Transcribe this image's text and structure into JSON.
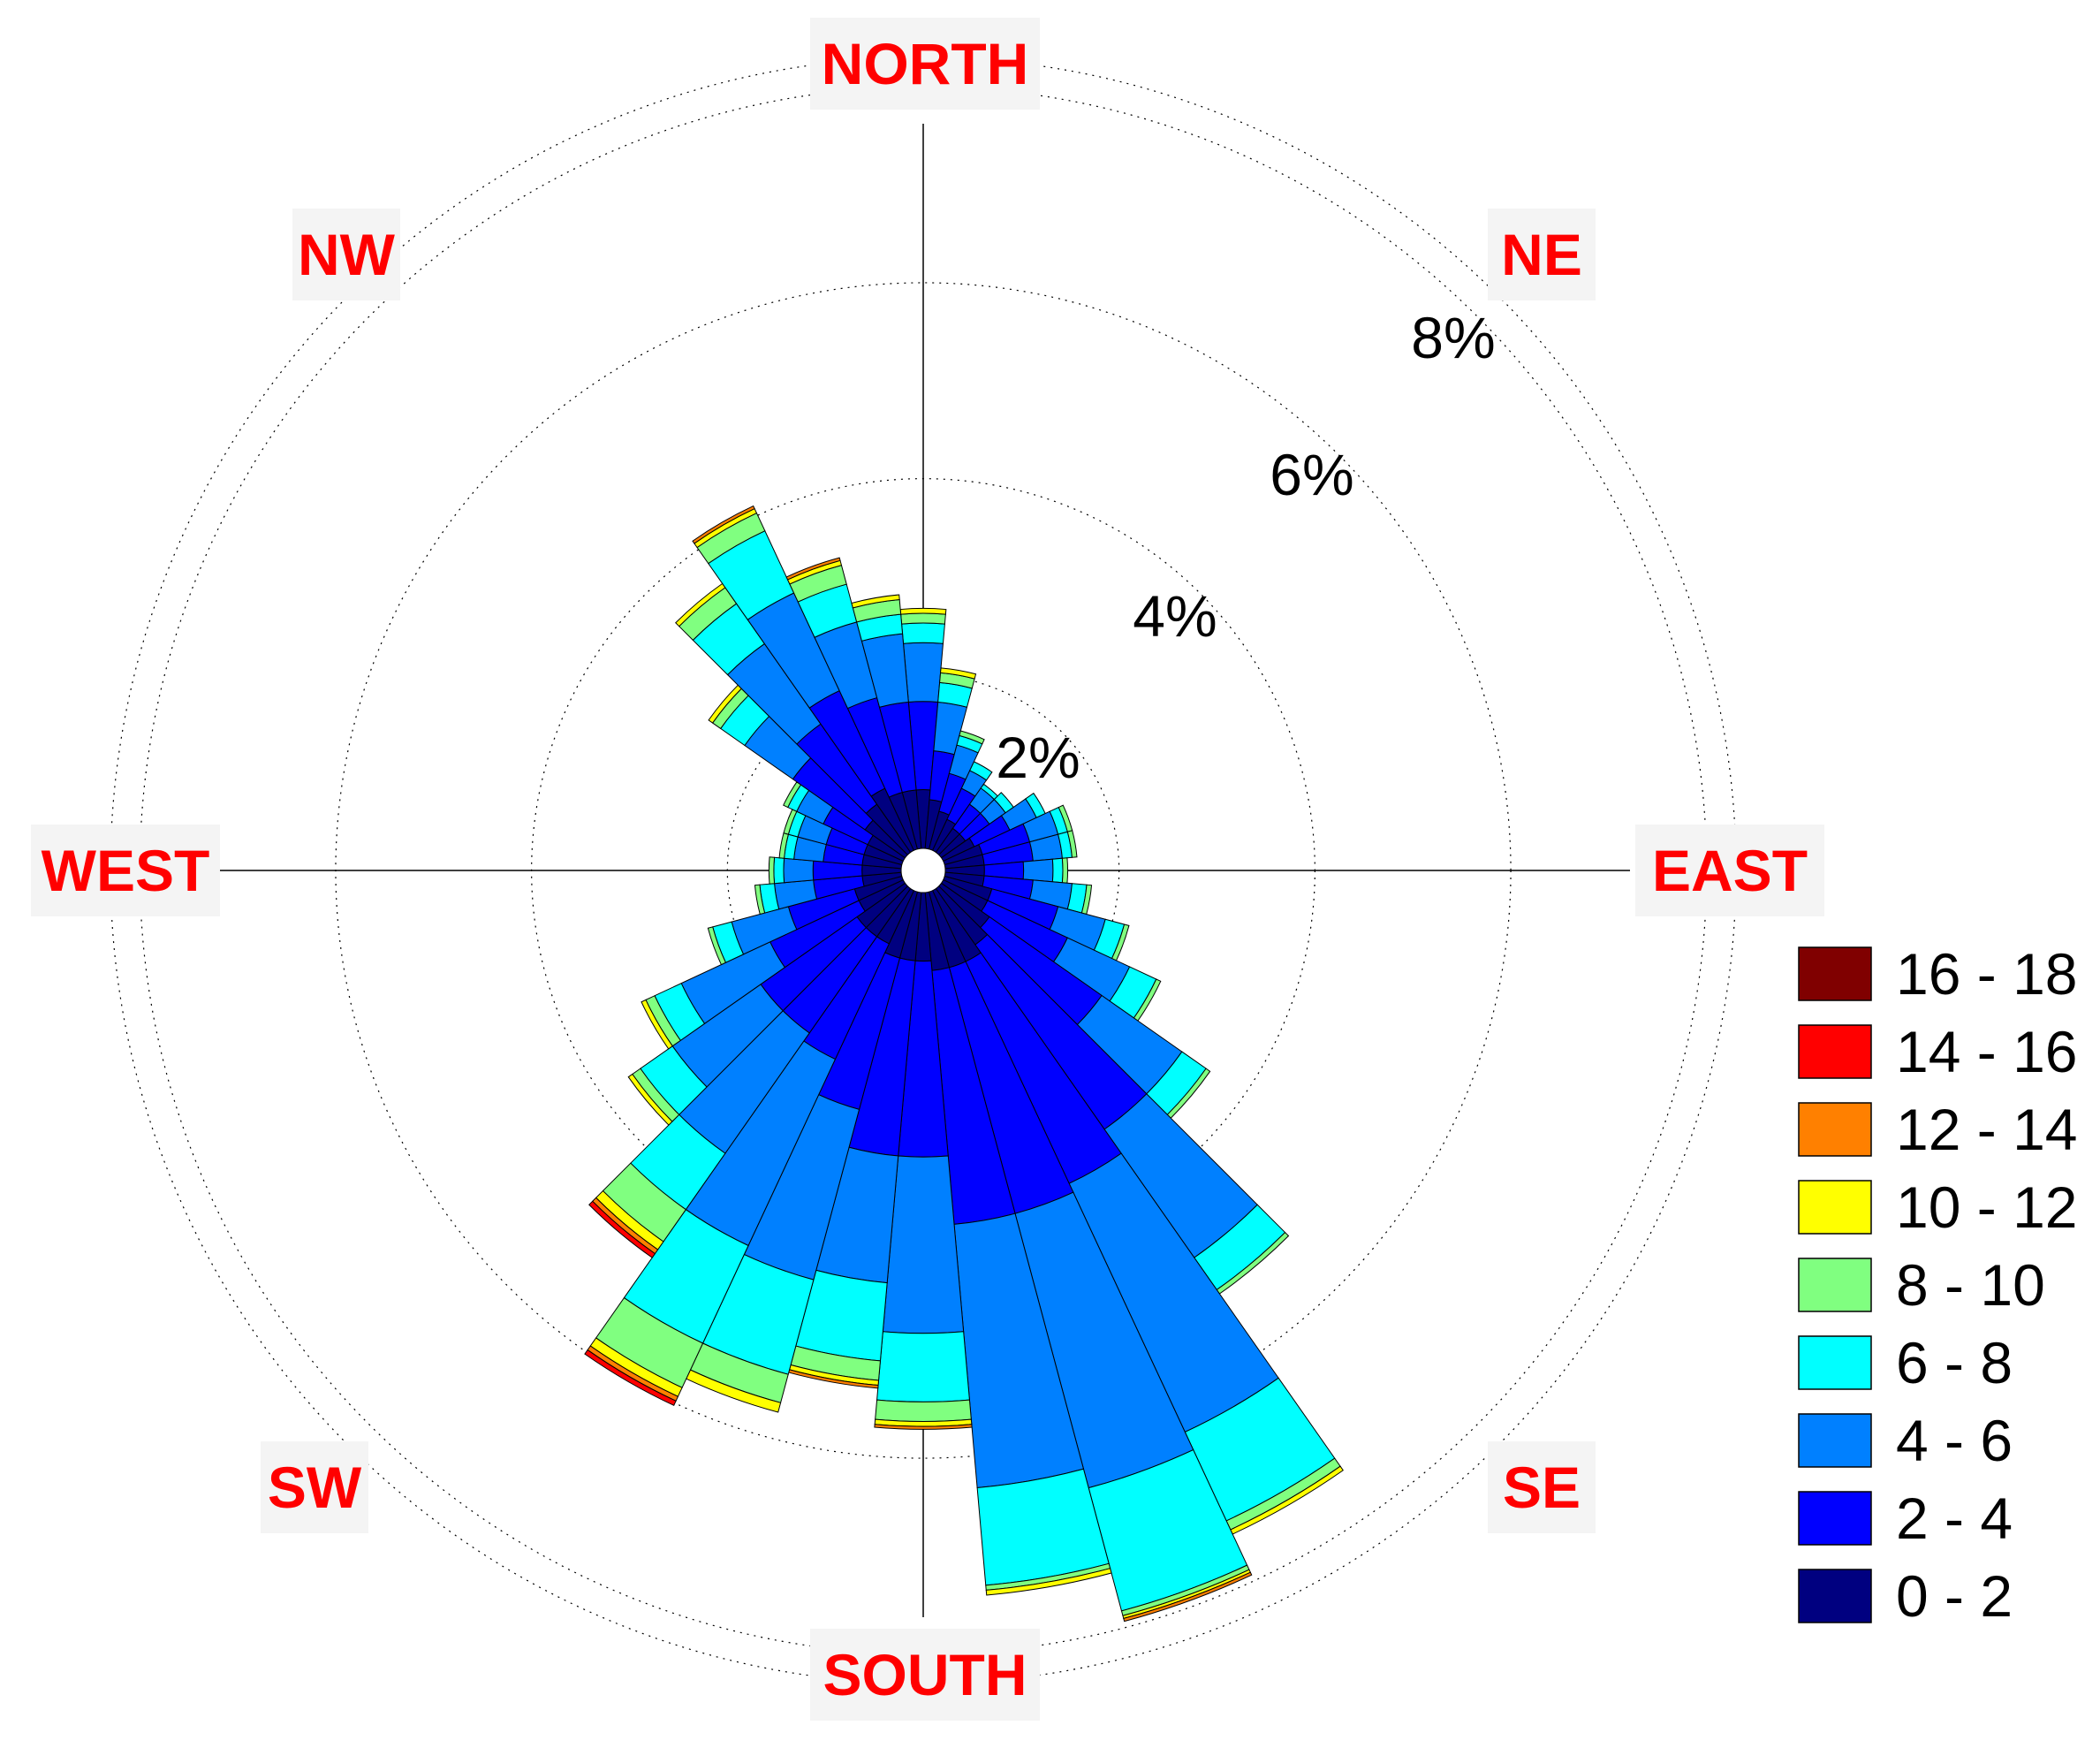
{
  "chart_data": {
    "type": "wind-rose",
    "directions": [
      "NORTH",
      "NE",
      "EAST",
      "SE",
      "SOUTH",
      "SW",
      "WEST",
      "NW"
    ],
    "rings": [
      {
        "value": 2,
        "label": "2%"
      },
      {
        "value": 4,
        "label": "4%"
      },
      {
        "value": 6,
        "label": "6%"
      },
      {
        "value": 8,
        "label": "8%"
      }
    ],
    "ring_max_percent": 8.3,
    "legend_placement": "right",
    "bins": [
      {
        "label": "0 - 2",
        "color": "#000080"
      },
      {
        "label": "2 - 4",
        "color": "#0000ff"
      },
      {
        "label": "4 - 6",
        "color": "#0080ff"
      },
      {
        "label": "6 - 8",
        "color": "#00ffff"
      },
      {
        "label": "8 - 10",
        "color": "#80ff80"
      },
      {
        "label": "10 - 12",
        "color": "#ffff00"
      },
      {
        "label": "12 - 14",
        "color": "#ff8000"
      },
      {
        "label": "14 - 16",
        "color": "#ff0000"
      },
      {
        "label": "16 - 18",
        "color": "#800000"
      }
    ],
    "sector_width_deg": 10,
    "sectors": [
      {
        "dir": 0,
        "values": [
          0.6,
          0.9,
          0.6,
          0.2,
          0.1,
          0.05,
          0,
          0,
          0
        ]
      },
      {
        "dir": 10,
        "values": [
          0.5,
          0.5,
          0.5,
          0.2,
          0.1,
          0.05,
          0,
          0,
          0
        ]
      },
      {
        "dir": 20,
        "values": [
          0.4,
          0.4,
          0.3,
          0.1,
          0.05,
          0,
          0,
          0,
          0
        ]
      },
      {
        "dir": 30,
        "values": [
          0.35,
          0.35,
          0.2,
          0.1,
          0,
          0,
          0,
          0,
          0
        ]
      },
      {
        "dir": 40,
        "values": [
          0.3,
          0.3,
          0.2,
          0.05,
          0,
          0,
          0,
          0,
          0
        ]
      },
      {
        "dir": 50,
        "values": [
          0.3,
          0.3,
          0.2,
          0.1,
          0,
          0,
          0,
          0,
          0
        ]
      },
      {
        "dir": 60,
        "values": [
          0.35,
          0.4,
          0.3,
          0.1,
          0,
          0,
          0,
          0,
          0
        ]
      },
      {
        "dir": 70,
        "values": [
          0.4,
          0.5,
          0.3,
          0.1,
          0.05,
          0,
          0,
          0,
          0
        ]
      },
      {
        "dir": 80,
        "values": [
          0.4,
          0.5,
          0.3,
          0.1,
          0.05,
          0,
          0,
          0,
          0
        ]
      },
      {
        "dir": 90,
        "values": [
          0.4,
          0.4,
          0.3,
          0.1,
          0.05,
          0,
          0,
          0,
          0
        ]
      },
      {
        "dir": 100,
        "values": [
          0.4,
          0.5,
          0.4,
          0.15,
          0.05,
          0,
          0,
          0,
          0
        ]
      },
      {
        "dir": 110,
        "values": [
          0.5,
          0.7,
          0.5,
          0.2,
          0.05,
          0,
          0,
          0,
          0
        ]
      },
      {
        "dir": 120,
        "values": [
          0.5,
          0.9,
          0.7,
          0.3,
          0.05,
          0,
          0,
          0,
          0
        ]
      },
      {
        "dir": 130,
        "values": [
          0.6,
          1.4,
          1.0,
          0.3,
          0.05,
          0,
          0,
          0,
          0
        ]
      },
      {
        "dir": 140,
        "values": [
          0.7,
          2.3,
          1.6,
          0.4,
          0.05,
          0,
          0,
          0,
          0
        ]
      },
      {
        "dir": 150,
        "values": [
          0.8,
          2.5,
          2.8,
          1.0,
          0.1,
          0.05,
          0,
          0,
          0
        ]
      },
      {
        "dir": 160,
        "values": [
          0.8,
          2.6,
          2.9,
          1.3,
          0.05,
          0.03,
          0.03,
          0,
          0
        ]
      },
      {
        "dir": 170,
        "values": [
          0.8,
          2.6,
          2.7,
          1.0,
          0.05,
          0.05,
          0,
          0,
          0
        ]
      },
      {
        "dir": 180,
        "values": [
          0.7,
          2.0,
          1.8,
          0.7,
          0.2,
          0.05,
          0.03,
          0,
          0
        ]
      },
      {
        "dir": 190,
        "values": [
          0.7,
          2.0,
          1.3,
          0.8,
          0.2,
          0.05,
          0.03,
          0,
          0
        ]
      },
      {
        "dir": 200,
        "values": [
          0.7,
          1.6,
          1.8,
          1.0,
          0.3,
          0.1,
          0,
          0,
          0
        ]
      },
      {
        "dir": 210,
        "values": [
          0.6,
          1.3,
          2.1,
          1.1,
          0.5,
          0.1,
          0.05,
          0.05,
          0
        ]
      },
      {
        "dir": 220,
        "values": [
          0.6,
          1.2,
          1.5,
          0.7,
          0.4,
          0.1,
          0.05,
          0.05,
          0
        ]
      },
      {
        "dir": 230,
        "values": [
          0.6,
          1.2,
          1.1,
          0.4,
          0.1,
          0.05,
          0,
          0,
          0
        ]
      },
      {
        "dir": 240,
        "values": [
          0.5,
          1.0,
          1.0,
          0.3,
          0.1,
          0.05,
          0,
          0,
          0
        ]
      },
      {
        "dir": 250,
        "values": [
          0.5,
          0.7,
          0.6,
          0.2,
          0.05,
          0,
          0,
          0,
          0
        ]
      },
      {
        "dir": 260,
        "values": [
          0.4,
          0.5,
          0.4,
          0.15,
          0.05,
          0,
          0,
          0,
          0
        ]
      },
      {
        "dir": 270,
        "values": [
          0.4,
          0.5,
          0.3,
          0.1,
          0.05,
          0,
          0,
          0,
          0
        ]
      },
      {
        "dir": 280,
        "values": [
          0.4,
          0.4,
          0.3,
          0.1,
          0.05,
          0,
          0,
          0,
          0
        ]
      },
      {
        "dir": 290,
        "values": [
          0.4,
          0.4,
          0.3,
          0.1,
          0.05,
          0,
          0,
          0,
          0
        ]
      },
      {
        "dir": 300,
        "values": [
          0.4,
          0.5,
          0.3,
          0.1,
          0.05,
          0,
          0,
          0,
          0
        ]
      },
      {
        "dir": 310,
        "values": [
          0.5,
          0.9,
          0.6,
          0.3,
          0.1,
          0.05,
          0,
          0,
          0
        ]
      },
      {
        "dir": 320,
        "values": [
          0.6,
          1.0,
          1.0,
          0.5,
          0.2,
          0.05,
          0,
          0,
          0
        ]
      },
      {
        "dir": 330,
        "values": [
          0.7,
          1.1,
          1.1,
          0.7,
          0.2,
          0.05,
          0.03,
          0,
          0
        ]
      },
      {
        "dir": 340,
        "values": [
          0.6,
          1.0,
          0.8,
          0.4,
          0.2,
          0.05,
          0.03,
          0,
          0
        ]
      },
      {
        "dir": 350,
        "values": [
          0.6,
          0.9,
          0.7,
          0.2,
          0.15,
          0.05,
          0,
          0,
          0
        ]
      }
    ]
  }
}
